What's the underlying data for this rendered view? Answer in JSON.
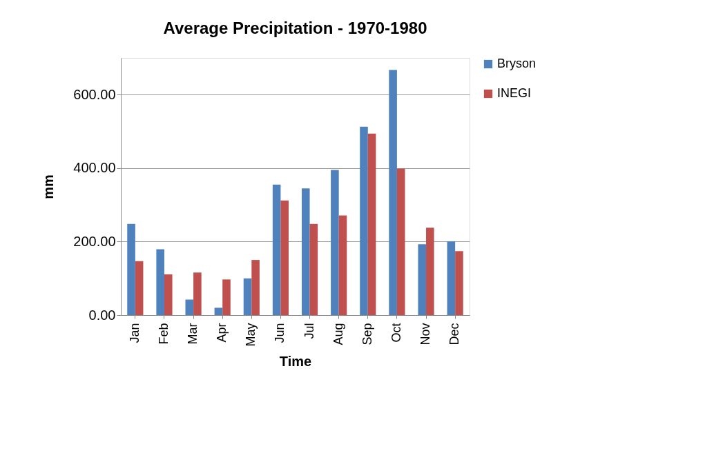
{
  "chart_data": {
    "type": "bar",
    "title": "Average Precipitation - 1970-1980",
    "xlabel": "Time",
    "ylabel": "mm",
    "categories": [
      "Jan",
      "Feb",
      "Mar",
      "Apr",
      "May",
      "Jun",
      "Jul",
      "Aug",
      "Sep",
      "Oct",
      "Nov",
      "Dec"
    ],
    "series": [
      {
        "name": "Bryson",
        "color": "#4f81bd",
        "values": [
          248,
          179,
          42,
          20,
          100,
          355,
          345,
          395,
          513,
          667,
          193,
          201
        ]
      },
      {
        "name": "INEGI",
        "color": "#c0504d",
        "values": [
          147,
          111,
          116,
          97,
          150,
          312,
          248,
          271,
          494,
          399,
          238,
          174
        ]
      }
    ],
    "ylim": [
      0,
      700
    ],
    "yticks": [
      {
        "value": 0,
        "label": "0.00"
      },
      {
        "value": 200,
        "label": "200.00"
      },
      {
        "value": 400,
        "label": "400.00"
      },
      {
        "value": 600,
        "label": "600.00"
      }
    ],
    "grid": "y",
    "legend": "right"
  }
}
